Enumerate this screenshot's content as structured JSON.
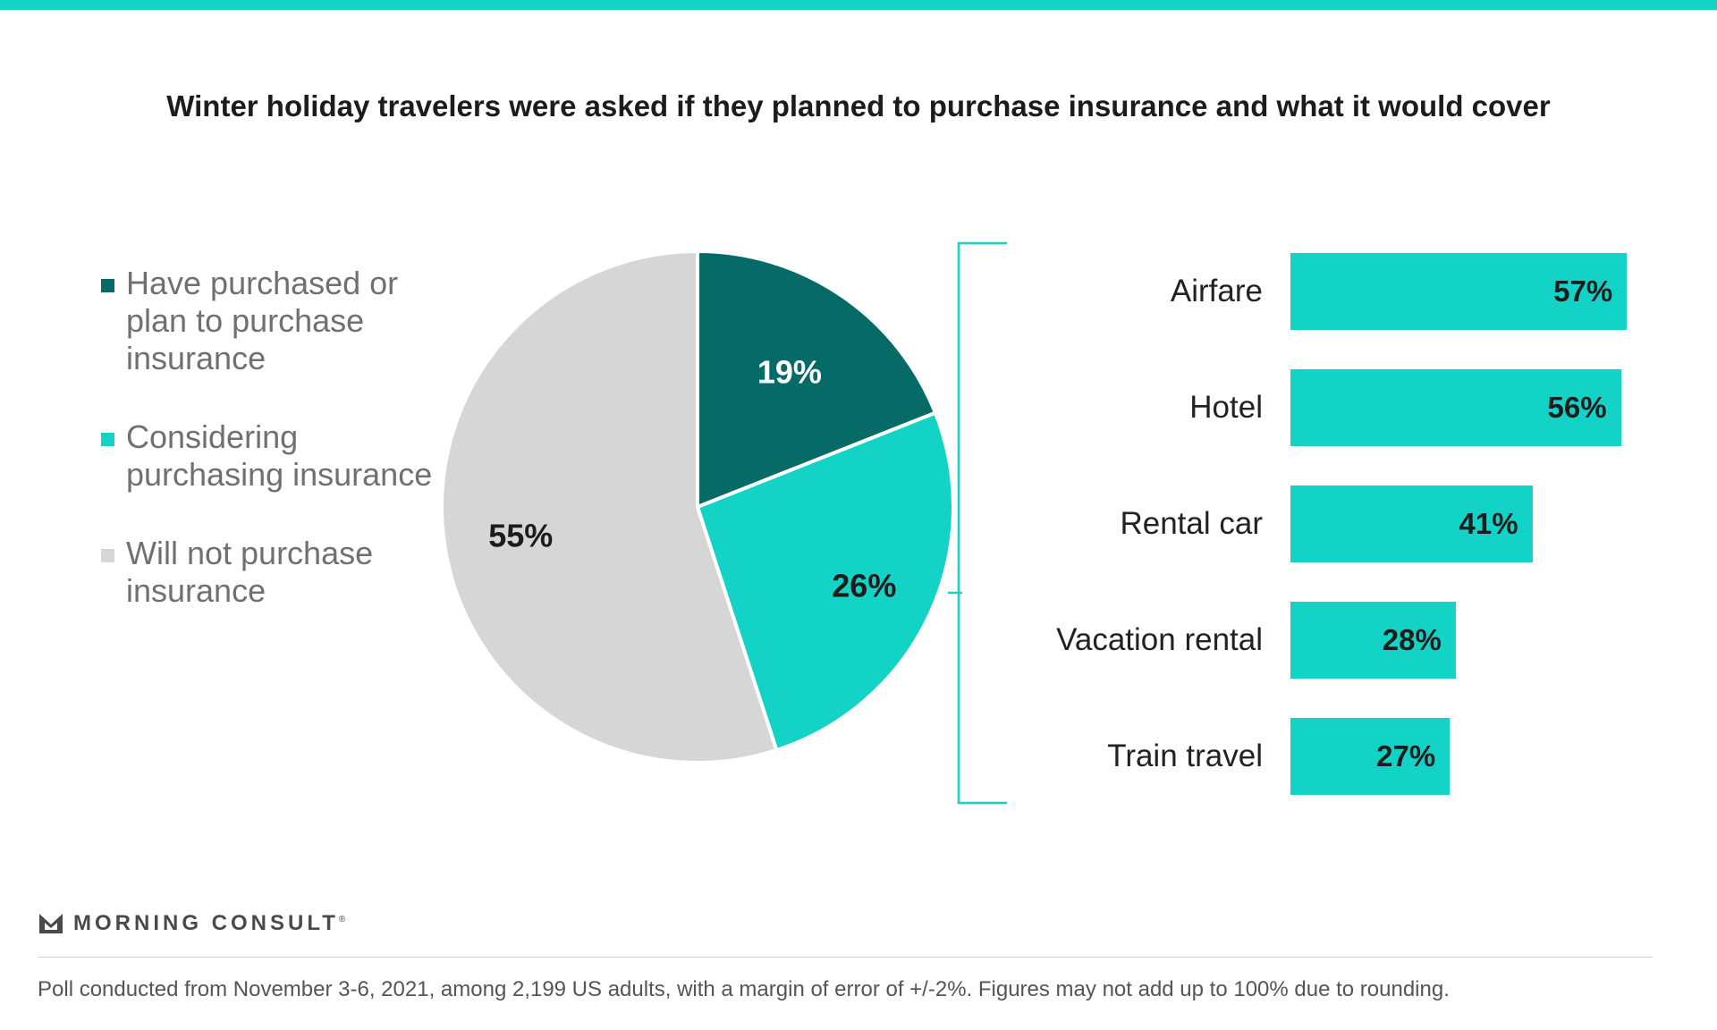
{
  "title": "Winter holiday travelers were asked if they planned to purchase insurance and what it would cover",
  "colors": {
    "accent": "#12d3c6",
    "dark_teal": "#066b67",
    "gray": "#d6d6d6",
    "text_dark": "#1c1c1c",
    "text_gray": "#707070"
  },
  "legend": [
    {
      "label": "Have purchased or plan to purchase insurance",
      "color": "#066b67"
    },
    {
      "label": "Considering purchasing insurance",
      "color": "#12d3c6"
    },
    {
      "label": "Will not purchase insurance",
      "color": "#d6d6d6"
    }
  ],
  "chart_data": [
    {
      "type": "pie",
      "slices": [
        {
          "label": "Have purchased or plan to purchase insurance",
          "value": 19,
          "display": "19%",
          "color": "#066b67"
        },
        {
          "label": "Considering purchasing insurance",
          "value": 26,
          "display": "26%",
          "color": "#12d3c6"
        },
        {
          "label": "Will not purchase insurance",
          "value": 55,
          "display": "55%",
          "color": "#d6d6d6"
        }
      ]
    },
    {
      "type": "bar",
      "orientation": "horizontal",
      "categories": [
        "Airfare",
        "Hotel",
        "Rental car",
        "Vacation rental",
        "Train travel"
      ],
      "values": [
        57,
        56,
        41,
        28,
        27
      ],
      "labels": [
        "57%",
        "56%",
        "41%",
        "28%",
        "27%"
      ],
      "xlim": [
        0,
        100
      ],
      "color": "#12d3c6"
    }
  ],
  "logo": {
    "text": "MORNING CONSULT",
    "mark": "®"
  },
  "footnote": "Poll conducted from November 3-6, 2021, among 2,199 US adults, with a margin of error of +/-2%. Figures may not add up to 100% due to rounding."
}
